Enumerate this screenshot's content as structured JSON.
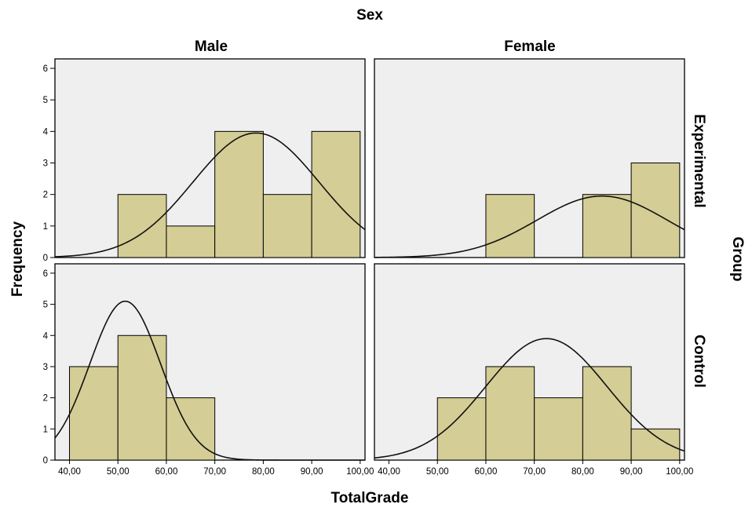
{
  "chart_data": {
    "type": "bar",
    "kind": "histogram-panel",
    "column_var": "Sex",
    "row_var": "Group",
    "column_labels": [
      "Male",
      "Female"
    ],
    "row_labels": [
      "Experimental",
      "Control"
    ],
    "xlabel": "TotalGrade",
    "ylabel": "Frequency",
    "xlim": [
      37,
      101
    ],
    "ylim": [
      0,
      6.3
    ],
    "x_ticks": [
      "40,00",
      "50,00",
      "60,00",
      "70,00",
      "80,00",
      "90,00",
      "100,00"
    ],
    "y_ticks": [
      "0",
      "1",
      "2",
      "3",
      "4",
      "5",
      "6"
    ],
    "bin_edges": [
      40,
      50,
      60,
      70,
      80,
      90,
      100
    ],
    "bar_color": "#d4cd95",
    "panel_bg_color": "#efefef",
    "normal_curve": true,
    "panels": [
      {
        "row": "Experimental",
        "col": "Male",
        "counts": [
          0,
          2,
          1,
          4,
          2,
          4
        ],
        "curve_peak_x": 78.5,
        "curve_peak_y": 3.95,
        "curve_sd": 13.0
      },
      {
        "row": "Experimental",
        "col": "Female",
        "counts": [
          0,
          0,
          2,
          0,
          2,
          3
        ],
        "curve_peak_x": 84.0,
        "curve_peak_y": 1.95,
        "curve_sd": 13.5
      },
      {
        "row": "Control",
        "col": "Male",
        "counts": [
          3,
          4,
          2,
          0,
          0,
          0
        ],
        "curve_peak_x": 51.5,
        "curve_peak_y": 5.1,
        "curve_sd": 7.3
      },
      {
        "row": "Control",
        "col": "Female",
        "counts": [
          0,
          2,
          3,
          2,
          3,
          1
        ],
        "curve_peak_x": 72.5,
        "curve_peak_y": 3.9,
        "curve_sd": 12.5
      }
    ]
  }
}
